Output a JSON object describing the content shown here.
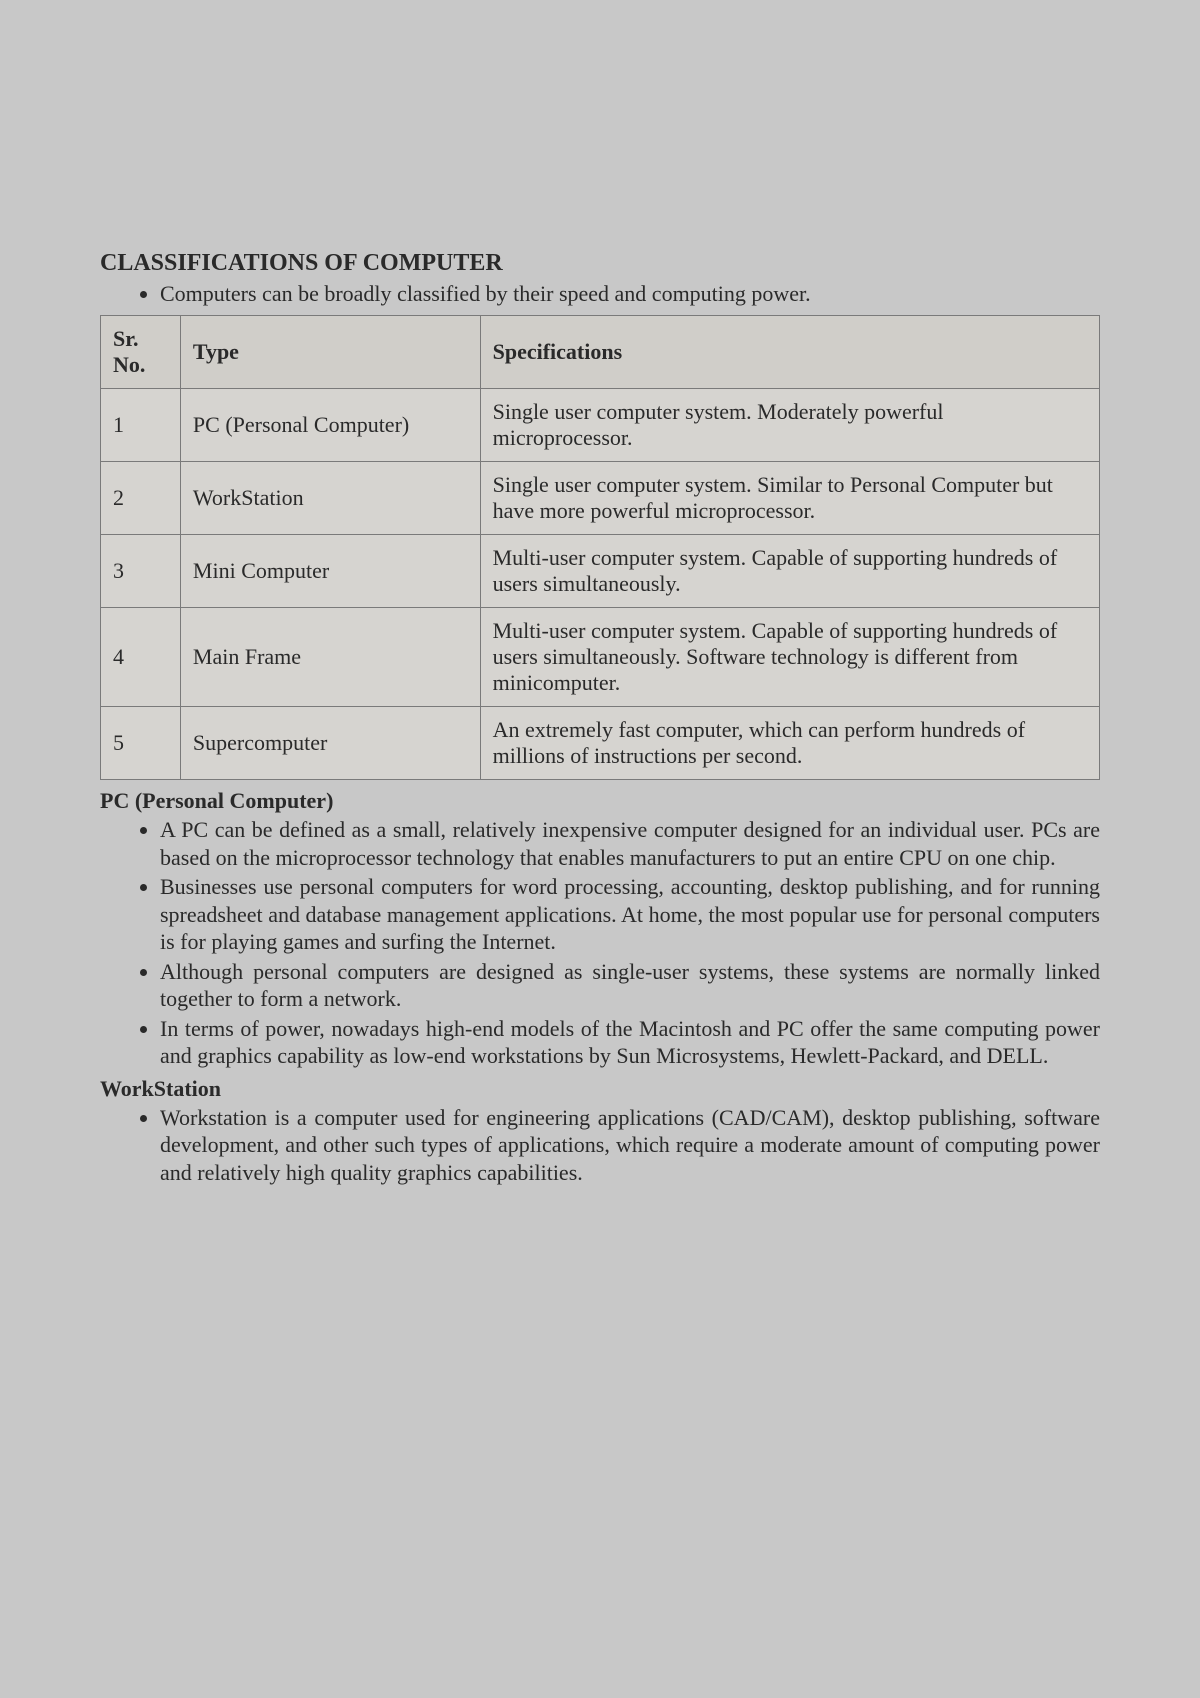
{
  "heading": "CLASSIFICATIONS OF COMPUTER",
  "intro": "Computers can be broadly classified by their speed and computing power.",
  "table": {
    "headers": {
      "sr": "Sr. No.",
      "type": "Type",
      "spec": "Specifications"
    },
    "rows": [
      {
        "sr": "1",
        "type": "PC (Personal Computer)",
        "spec": "Single user computer system. Moderately powerful microprocessor."
      },
      {
        "sr": "2",
        "type": "WorkStation",
        "spec": "Single user computer system. Similar to Personal Computer but have more powerful microprocessor."
      },
      {
        "sr": "3",
        "type": "Mini Computer",
        "spec": "Multi-user computer system. Capable of supporting hundreds of users simultaneously."
      },
      {
        "sr": "4",
        "type": "Main Frame",
        "spec": "Multi-user computer system. Capable of supporting hundreds of users simultaneously. Software technology is different from minicomputer."
      },
      {
        "sr": "5",
        "type": "Supercomputer",
        "spec": "An extremely fast computer, which can perform hundreds of millions of instructions per second."
      }
    ]
  },
  "sections": [
    {
      "title": "PC (Personal Computer)",
      "bullets": [
        "A PC can be defined as a small, relatively inexpensive computer designed for an individual user. PCs are based on the microprocessor technology that enables manufacturers to put an entire CPU on one chip.",
        "Businesses use personal computers for word processing, accounting, desktop publishing, and for running spreadsheet and database management applications. At home, the most popular use for personal computers is for playing games and surfing the Internet.",
        "Although personal computers are designed as single-user systems, these systems are normally linked together to form a network.",
        "In terms of power, nowadays high-end models of the Macintosh and PC offer the same computing power and graphics capability as low-end workstations by Sun Microsystems, Hewlett-Packard, and DELL."
      ]
    },
    {
      "title": "WorkStation",
      "bullets": [
        "Workstation is a computer used for engineering applications (CAD/CAM), desktop publishing, software development, and other such types of applications, which require a moderate amount of computing power and relatively high quality graphics capabilities."
      ]
    }
  ]
}
